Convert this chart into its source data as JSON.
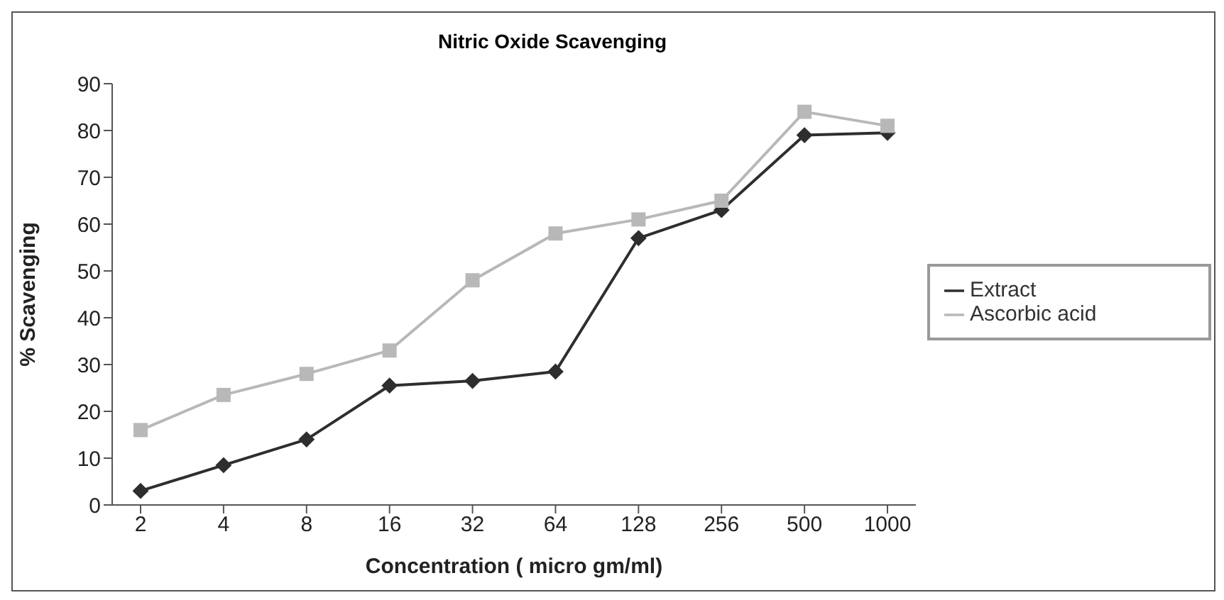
{
  "chart_data": {
    "type": "line",
    "title": "Nitric Oxide Scavenging",
    "xlabel": "Concentration ( micro gm/ml)",
    "ylabel": "% Scavenging",
    "categories": [
      "2",
      "4",
      "8",
      "16",
      "32",
      "64",
      "128",
      "256",
      "500",
      "1000"
    ],
    "series": [
      {
        "name": "Extract",
        "color": "#2e2e2e",
        "marker": "diamond",
        "values": [
          3,
          8.5,
          14,
          25.5,
          26.5,
          28.5,
          57,
          63,
          79,
          79.5
        ]
      },
      {
        "name": "Ascorbic acid",
        "color": "#b8b8b8",
        "marker": "square",
        "values": [
          16,
          23.5,
          28,
          33,
          48,
          58,
          61,
          65,
          84,
          81
        ]
      }
    ],
    "ylim": [
      0,
      90
    ],
    "yticks": [
      0,
      10,
      20,
      30,
      40,
      50,
      60,
      70,
      80,
      90
    ],
    "grid": false,
    "legend": "right"
  }
}
